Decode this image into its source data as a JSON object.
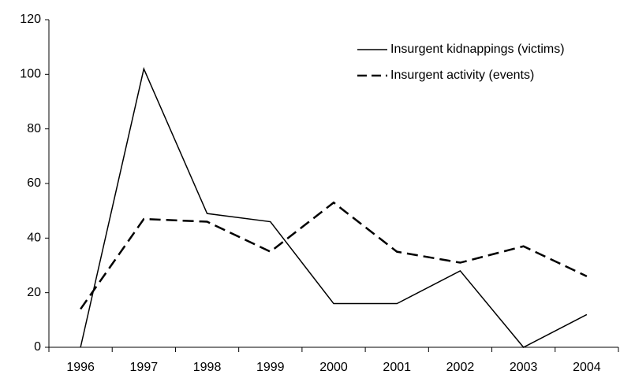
{
  "chart_data": {
    "type": "line",
    "categories": [
      "1996",
      "1997",
      "1998",
      "1999",
      "2000",
      "2001",
      "2002",
      "2003",
      "2004"
    ],
    "series": [
      {
        "name": "Insurgent kidnappings (victims)",
        "color": "#000000",
        "line_style": "solid",
        "values": [
          0,
          102,
          49,
          46,
          16,
          16,
          28,
          0,
          12
        ]
      },
      {
        "name": "Insurgent activity (events)",
        "color": "#000000",
        "line_style": "dashed",
        "values": [
          14,
          47,
          46,
          35,
          53,
          35,
          31,
          37,
          26
        ]
      }
    ],
    "ylim": [
      0,
      120
    ],
    "yticks": [
      0,
      20,
      40,
      60,
      80,
      100,
      120
    ],
    "grid": false,
    "legend": "upper right"
  }
}
